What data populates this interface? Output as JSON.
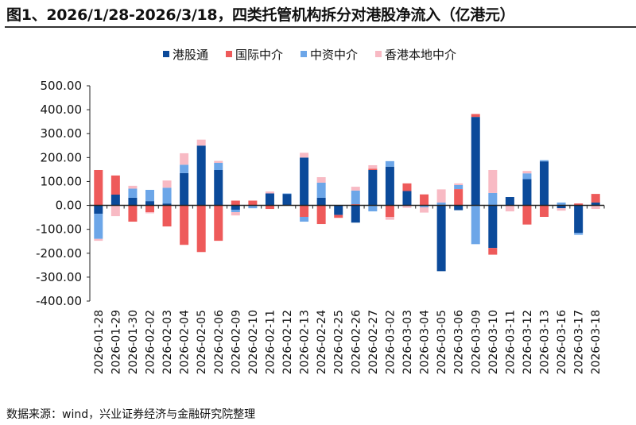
{
  "title": "图1、2026/1/28-2026/3/18，四类托管机构拆分对港股净流入（亿港元）",
  "source": "数据来源：wind，兴业证券经济与金融研究院整理",
  "chart_data": {
    "type": "bar",
    "stacked": true,
    "title": "图1、2026/1/28-2026/3/18，四类托管机构拆分对港股净流入（亿港元）",
    "xlabel": "",
    "ylabel": "",
    "ylim": [
      -400,
      500
    ],
    "yticks": [
      500,
      400,
      300,
      200,
      100,
      0,
      -100,
      -200,
      -300,
      -400
    ],
    "ytick_labels": [
      "500.00",
      "400.00",
      "300.00",
      "200.00",
      "100.00",
      "0.00",
      "-100.00",
      "-200.00",
      "-300.00",
      "-400.00"
    ],
    "grid": false,
    "legend_position": "top",
    "categories": [
      "2026-01-28",
      "2026-01-29",
      "2026-01-30",
      "2026-02-02",
      "2026-02-03",
      "2026-02-04",
      "2026-02-05",
      "2026-02-06",
      "2026-02-09",
      "2026-02-10",
      "2026-02-11",
      "2026-02-12",
      "2026-02-13",
      "2026-02-24",
      "2026-02-25",
      "2026-02-26",
      "2026-02-27",
      "2026-03-02",
      "2026-03-03",
      "2026-03-04",
      "2026-03-05",
      "2026-03-06",
      "2026-03-09",
      "2026-03-10",
      "2026-03-11",
      "2026-03-12",
      "2026-03-13",
      "2026-03-16",
      "2026-03-17",
      "2026-03-18"
    ],
    "series": [
      {
        "name": "港股通",
        "color": "#0B4A9A",
        "values": [
          -35,
          45,
          32,
          18,
          8,
          135,
          250,
          148,
          -18,
          0,
          50,
          48,
          200,
          32,
          -40,
          -72,
          148,
          162,
          60,
          0,
          -275,
          -20,
          370,
          -178,
          35,
          110,
          184,
          -12,
          -115,
          12
        ]
      },
      {
        "name": "国际中介",
        "color": "#EE5A5A",
        "values": [
          148,
          80,
          -68,
          -28,
          -88,
          -165,
          -195,
          -148,
          20,
          20,
          -15,
          0,
          -48,
          -78,
          -12,
          5,
          5,
          -48,
          32,
          46,
          0,
          68,
          12,
          -28,
          0,
          -80,
          -48,
          0,
          8,
          36
        ]
      },
      {
        "name": "中资中介",
        "color": "#6CA6E8",
        "values": [
          -105,
          0,
          38,
          47,
          66,
          35,
          0,
          30,
          -10,
          -12,
          0,
          2,
          -20,
          63,
          0,
          57,
          -25,
          23,
          0,
          -8,
          12,
          17,
          -162,
          52,
          0,
          24,
          5,
          12,
          -8,
          0
        ]
      },
      {
        "name": "香港本地中介",
        "color": "#F8BAC4",
        "values": [
          -8,
          -45,
          12,
          -5,
          30,
          48,
          25,
          8,
          -14,
          0,
          8,
          0,
          20,
          23,
          0,
          16,
          15,
          -12,
          -10,
          -22,
          55,
          7,
          0,
          96,
          -25,
          10,
          0,
          -10,
          0,
          -15
        ]
      }
    ]
  }
}
